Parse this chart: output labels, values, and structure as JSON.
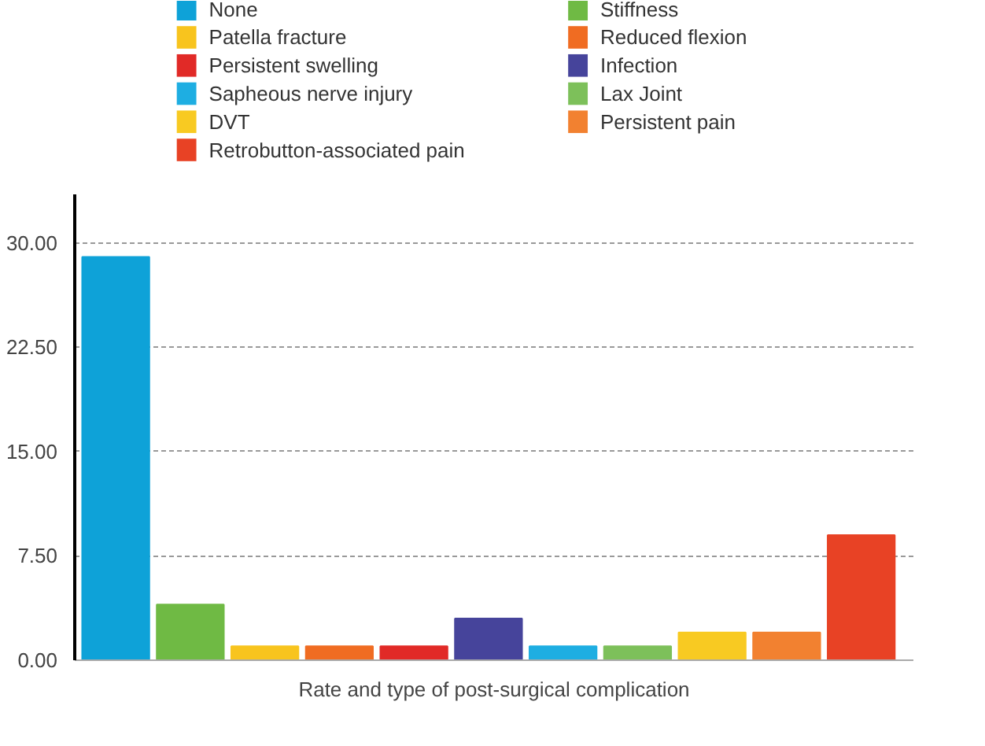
{
  "chart_data": {
    "type": "bar",
    "xlabel": "Rate and type of post-surgical complication",
    "categories": [
      null,
      null,
      null,
      null,
      null,
      null,
      null,
      null,
      null,
      null,
      null
    ],
    "series": [
      {
        "name": "None",
        "color": "#0ea2d8",
        "values": [
          29,
          null,
          null,
          null,
          null,
          null,
          null,
          null,
          null,
          null,
          null
        ]
      },
      {
        "name": "Stiffness",
        "color": "#6fba44",
        "values": [
          null,
          4,
          null,
          null,
          null,
          null,
          null,
          null,
          null,
          null,
          null
        ]
      },
      {
        "name": "Patella fracture",
        "color": "#f8c41e",
        "values": [
          null,
          null,
          1,
          null,
          null,
          null,
          null,
          null,
          null,
          null,
          null
        ]
      },
      {
        "name": "Reduced flexion",
        "color": "#f06c22",
        "values": [
          null,
          null,
          null,
          1,
          null,
          null,
          null,
          null,
          null,
          null,
          null
        ]
      },
      {
        "name": "Persistent swelling",
        "color": "#e12a27",
        "values": [
          null,
          null,
          null,
          null,
          1,
          null,
          null,
          null,
          null,
          null,
          null
        ]
      },
      {
        "name": "Infection",
        "color": "#46449b",
        "values": [
          null,
          null,
          null,
          null,
          null,
          3,
          null,
          null,
          null,
          null,
          null
        ]
      },
      {
        "name": "Sapheous nerve injury",
        "color": "#1eaee2",
        "values": [
          null,
          null,
          null,
          null,
          null,
          null,
          1,
          null,
          null,
          null,
          null
        ]
      },
      {
        "name": "Lax Joint",
        "color": "#7dc05a",
        "values": [
          null,
          null,
          null,
          null,
          null,
          null,
          null,
          1,
          null,
          null,
          null
        ]
      },
      {
        "name": "DVT",
        "color": "#f8ca22",
        "values": [
          null,
          null,
          null,
          null,
          null,
          null,
          null,
          null,
          2,
          null,
          null
        ]
      },
      {
        "name": "Persistent pain",
        "color": "#f28130",
        "values": [
          null,
          null,
          null,
          null,
          null,
          null,
          null,
          null,
          null,
          2,
          null
        ]
      },
      {
        "name": "Retrobutton-associated pain",
        "color": "#e84225",
        "values": [
          null,
          null,
          null,
          null,
          null,
          null,
          null,
          null,
          null,
          null,
          9
        ]
      }
    ],
    "ylim": [
      0,
      33.5
    ],
    "yticks": [
      {
        "value": 0,
        "label": "0.00"
      },
      {
        "value": 7.5,
        "label": "7.50"
      },
      {
        "value": 15,
        "label": "15.00"
      },
      {
        "value": 22.5,
        "label": "22.50"
      },
      {
        "value": 30,
        "label": "30.00"
      }
    ],
    "grid": "y",
    "legend": "top",
    "tick_labels": "y"
  }
}
